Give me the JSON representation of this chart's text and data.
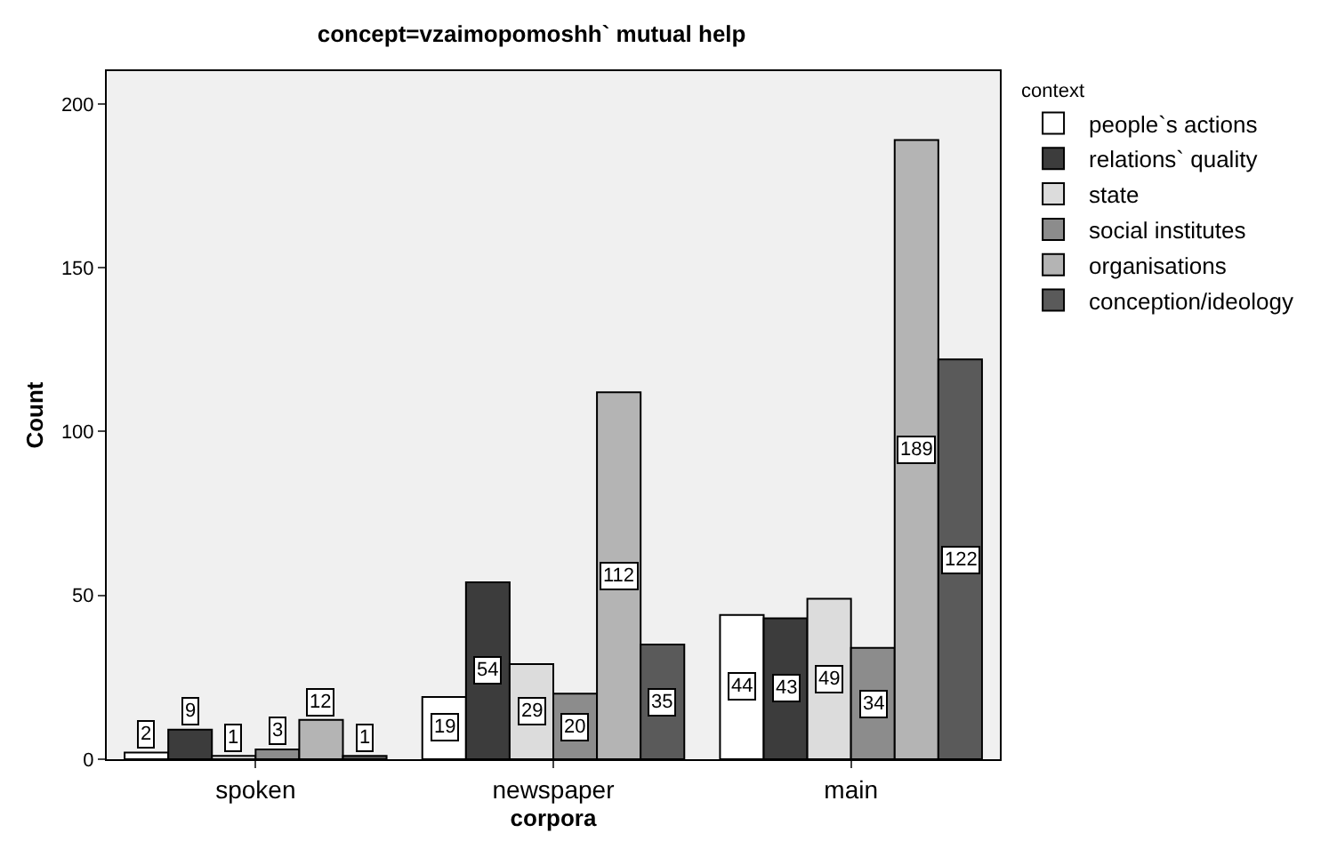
{
  "chart_data": {
    "type": "bar",
    "title": "concept=vzaimopomoshh` mutual help",
    "xlabel": "corpora",
    "ylabel": "Count",
    "legend_title": "context",
    "categories": [
      "spoken",
      "newspaper",
      "main"
    ],
    "series": [
      {
        "name": "people`s actions",
        "color": "#ffffff",
        "values": [
          2,
          19,
          44
        ]
      },
      {
        "name": "relations` quality",
        "color": "#3c3c3c",
        "values": [
          9,
          54,
          43
        ]
      },
      {
        "name": "state",
        "color": "#dcdcdc",
        "values": [
          1,
          29,
          49
        ]
      },
      {
        "name": "social institutes",
        "color": "#8c8c8c",
        "values": [
          3,
          20,
          34
        ]
      },
      {
        "name": "organisations",
        "color": "#b4b4b4",
        "values": [
          12,
          112,
          189
        ]
      },
      {
        "name": "conception/ideology",
        "color": "#5a5a5a",
        "values": [
          1,
          35,
          122
        ]
      }
    ],
    "ylim": [
      0,
      210
    ],
    "yticks": [
      0,
      50,
      100,
      150,
      200
    ],
    "grid": false,
    "legend": "right",
    "data_labels": true
  }
}
